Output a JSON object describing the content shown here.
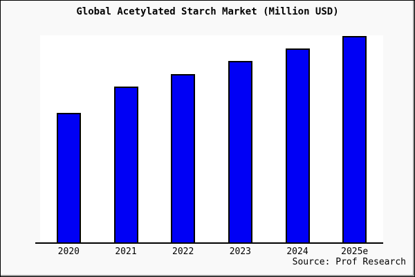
{
  "title": "Global Acetylated Starch Market (Million USD)",
  "source_credit": "Source: Prof Research",
  "colors": {
    "background": "#f9f9f9",
    "plot_background": "#ffffff",
    "bar_fill": "#0000f5",
    "bar_border": "#000000",
    "axis": "#000000",
    "text": "#000000",
    "frame_border": "#000000",
    "frame_shadow": "#999999"
  },
  "chart_data": {
    "type": "bar",
    "title": "Global Acetylated Starch Market (Million USD)",
    "categories": [
      "2020",
      "2021",
      "2022",
      "2023",
      "2024",
      "2025e"
    ],
    "values": [
      62.7,
      75.3,
      81.3,
      87.7,
      93.7,
      99.7
    ],
    "units": "percent of plot height (relative size; no y-axis scale or value labels shown in image)",
    "scale_max": 100,
    "xlabel": "",
    "ylabel": "",
    "ylim": [
      0,
      100
    ],
    "y_axis_visible": false,
    "gridlines": false,
    "legend": false,
    "annotation": "Source: Prof Research"
  }
}
